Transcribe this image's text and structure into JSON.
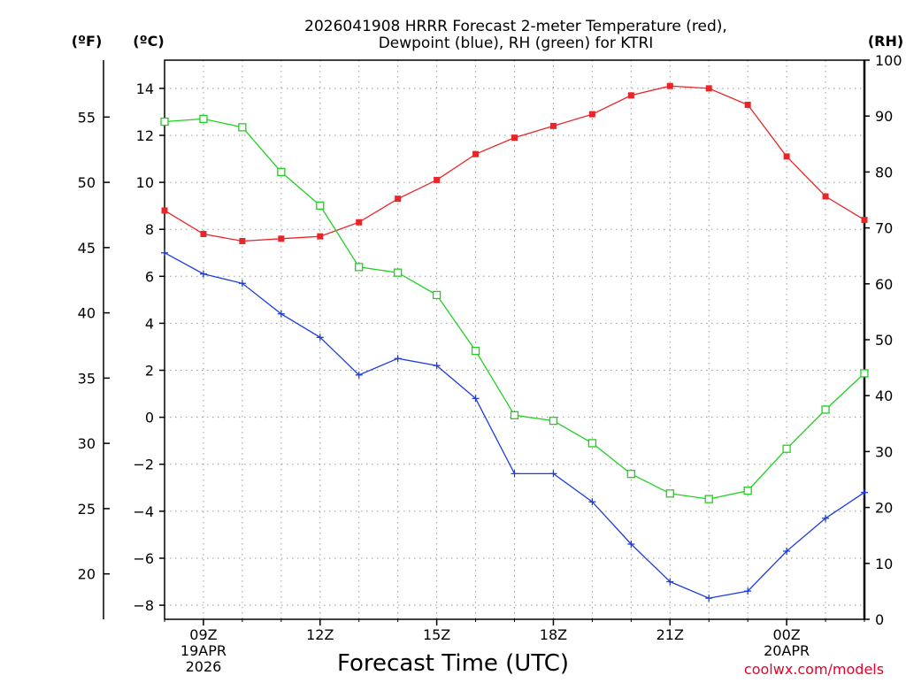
{
  "chart_data": {
    "type": "line",
    "title": "2026041908 HRRR Forecast 2-meter Temperature (red),",
    "subtitle": "Dewpoint (blue), RH (green) for KTRI",
    "xlabel": "Forecast Time (UTC)",
    "credit": "coolwx.com/models",
    "units": {
      "fahrenheit": "(ºF)",
      "celsius": "(ºC)",
      "rh": "(RH)"
    },
    "x_hours": [
      8,
      9,
      10,
      11,
      12,
      13,
      14,
      15,
      16,
      17,
      18,
      19,
      20,
      21,
      22,
      23,
      24,
      25,
      26
    ],
    "xlim": [
      8,
      26
    ],
    "x_ticks": [
      {
        "hour": 9,
        "label": "09Z",
        "date": "19APR",
        "year": "2026"
      },
      {
        "hour": 12,
        "label": "12Z"
      },
      {
        "hour": 15,
        "label": "15Z"
      },
      {
        "hour": 18,
        "label": "18Z"
      },
      {
        "hour": 21,
        "label": "21Z"
      },
      {
        "hour": 24,
        "label": "00Z",
        "date": "20APR"
      }
    ],
    "celsius_axis": {
      "ylim": [
        -8.6,
        15.2
      ],
      "ticks": [
        14,
        12,
        10,
        8,
        6,
        4,
        2,
        0,
        -2,
        -4,
        -6,
        -8
      ],
      "labels": [
        "14",
        "12",
        "10",
        "8",
        "6",
        "4",
        "2",
        "0",
        "−2",
        "−4",
        "−6",
        "−8"
      ]
    },
    "fahrenheit_axis": {
      "ticks": [
        55,
        50,
        45,
        40,
        35,
        30,
        25,
        20
      ],
      "labels": [
        "55",
        "50",
        "45",
        "40",
        "35",
        "30",
        "25",
        "20"
      ]
    },
    "rh_axis": {
      "ylim": [
        0,
        100
      ],
      "ticks": [
        100,
        90,
        80,
        70,
        60,
        50,
        40,
        30,
        20,
        10,
        0
      ],
      "labels": [
        "100",
        "90",
        "80",
        "70",
        "60",
        "50",
        "40",
        "30",
        "20",
        "10",
        "0"
      ]
    },
    "series": [
      {
        "name": "Temperature",
        "unit": "C",
        "color": "#e8262a",
        "marker": "filled-square",
        "values": [
          8.8,
          7.8,
          7.5,
          7.6,
          7.7,
          8.3,
          9.3,
          10.1,
          11.2,
          11.9,
          12.4,
          12.9,
          13.7,
          14.1,
          14.0,
          13.3,
          11.1,
          9.4,
          8.4
        ]
      },
      {
        "name": "Dewpoint",
        "unit": "C",
        "color": "#1c3ee0",
        "marker": "plus",
        "values": [
          7.0,
          6.1,
          5.7,
          4.4,
          3.4,
          1.8,
          2.5,
          2.2,
          0.8,
          -2.4,
          -2.4,
          -3.6,
          -5.4,
          -7.0,
          -7.7,
          -7.4,
          -5.7,
          -4.3,
          -3.2
        ]
      },
      {
        "name": "RH",
        "unit": "%",
        "color": "#1ed11e",
        "marker": "open-square",
        "values": [
          89,
          89.5,
          88,
          80,
          74,
          63,
          62,
          58,
          48,
          36.5,
          35.5,
          31.5,
          26,
          22.5,
          21.5,
          23,
          30.5,
          37.5,
          44
        ]
      }
    ]
  }
}
